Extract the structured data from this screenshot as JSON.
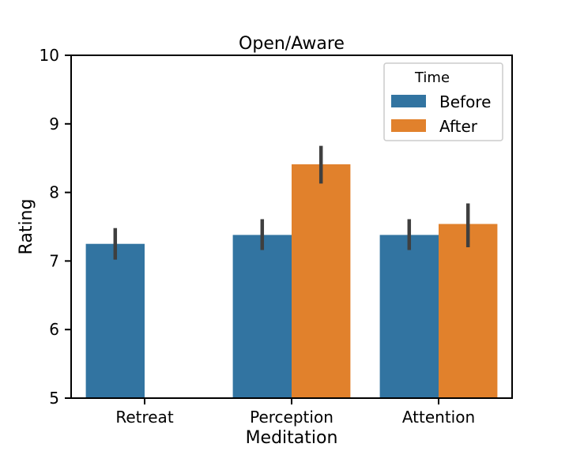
{
  "chart_data": {
    "type": "bar",
    "title": "Open/Aware",
    "xlabel": "Meditation",
    "ylabel": "Rating",
    "categories": [
      "Retreat",
      "Perception",
      "Attention"
    ],
    "ylim": [
      5,
      10
    ],
    "yticks": [
      5,
      6,
      7,
      8,
      9,
      10
    ],
    "grid": false,
    "legend": {
      "title": "Time",
      "placement": "top-right"
    },
    "series": [
      {
        "name": "Before",
        "color": "#3274a1",
        "values": [
          7.25,
          7.38,
          7.38
        ],
        "err_low": [
          7.02,
          7.16,
          7.16
        ],
        "err_high": [
          7.48,
          7.61,
          7.61
        ]
      },
      {
        "name": "After",
        "color": "#e1812c",
        "values": [
          null,
          8.41,
          7.54
        ],
        "err_low": [
          null,
          8.13,
          7.2
        ],
        "err_high": [
          null,
          8.68,
          7.84
        ]
      }
    ],
    "errorbar_color": "#3f3f3f"
  }
}
